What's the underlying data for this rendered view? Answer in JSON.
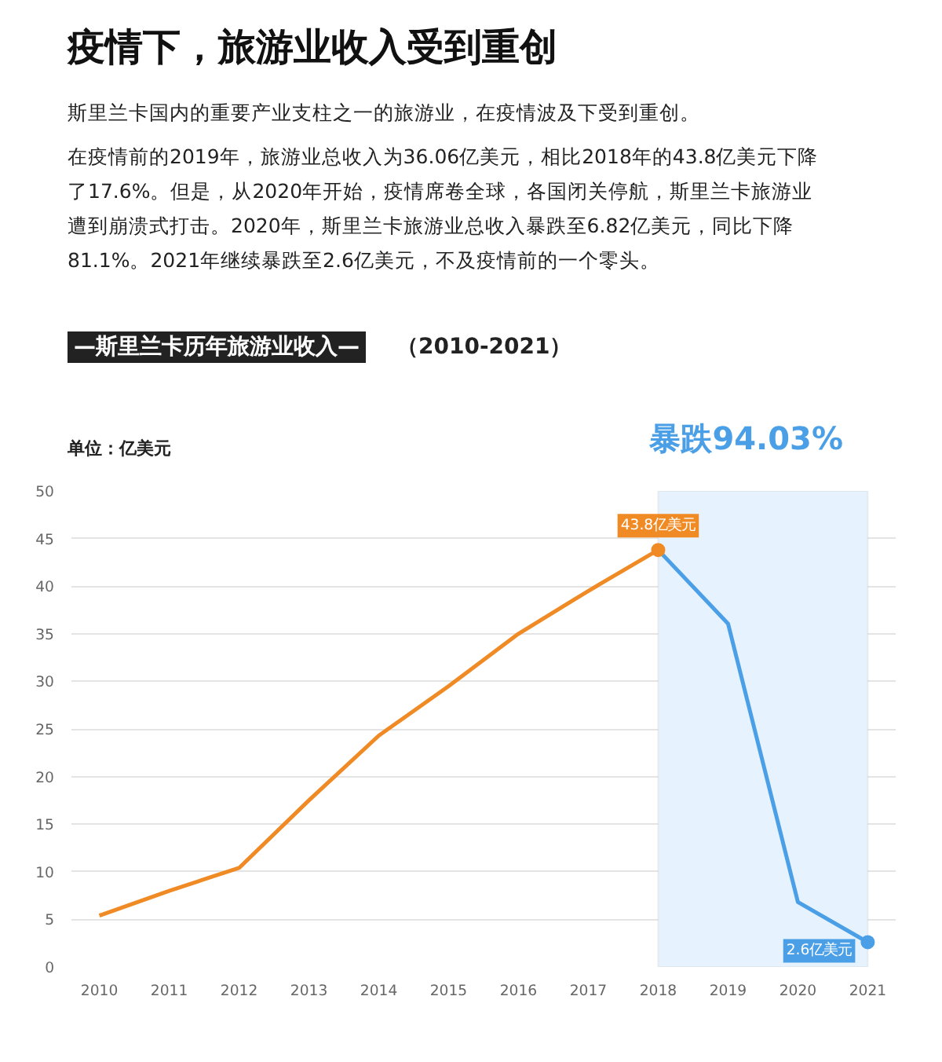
{
  "chart_data": {
    "type": "line",
    "title": "疫情下，旅游业收入受到重创",
    "subtitle": "—斯里兰卡历年旅游业收入—",
    "ylabel": "单位：亿美元",
    "annotations": [
      "斯里兰卡国内的重要产业支柱之一的旅游业，在疫情波及下受到重创。",
      "在疫情前的2019年，旅游业总收入为36.06亿美元，相比2018年的43.8亿美元下降了17.6%。但是，从2020年开始，疫情席卷全球，各国闭关停航，斯里兰卡旅游业遭到崩溃式打击。2020年，斯里兰卡旅游业总收入暴跌至6.82亿美元，同比下降81.1%。2021年继续暴跌至2.6亿美元，不及疫情前的一个零头。",
      "（2010-2021）",
      {
        "text": "43.8亿美元",
        "x": 2018,
        "y": 43.8
      },
      {
        "text": "2.6亿美元",
        "x": 2021,
        "y": 2.6
      }
    ],
    "series": [
      {
        "color": "#f08a24",
        "x": [
          2010,
          2011,
          2012,
          2013,
          2014,
          2015,
          2016,
          2017,
          2018
        ],
        "values": [
          5.4,
          8,
          10.4,
          17.5,
          24.3,
          29.5,
          35,
          39.5,
          43.8
        ]
      },
      {
        "color": "#4a9fe6",
        "x": [
          2018,
          2019,
          2020,
          2021
        ],
        "values": [
          43.8,
          36.06,
          6.82,
          2.6
        ]
      }
    ],
    "xlim": [
      2009.6,
      2021.4
    ],
    "xticks": [
      2010,
      2011,
      2012,
      2013,
      2014,
      2015,
      2016,
      2017,
      2018,
      2019,
      2020,
      2021
    ],
    "ylim": [
      0,
      50
    ],
    "yticks": [
      0,
      5,
      10,
      15,
      20,
      25,
      30,
      35,
      40,
      45,
      50
    ],
    "bands": [
      {
        "axis": "x",
        "from": 2018,
        "to": 2021,
        "label": "暴跌94.03%",
        "color": "#e6f2fd"
      }
    ],
    "grid": "y"
  }
}
